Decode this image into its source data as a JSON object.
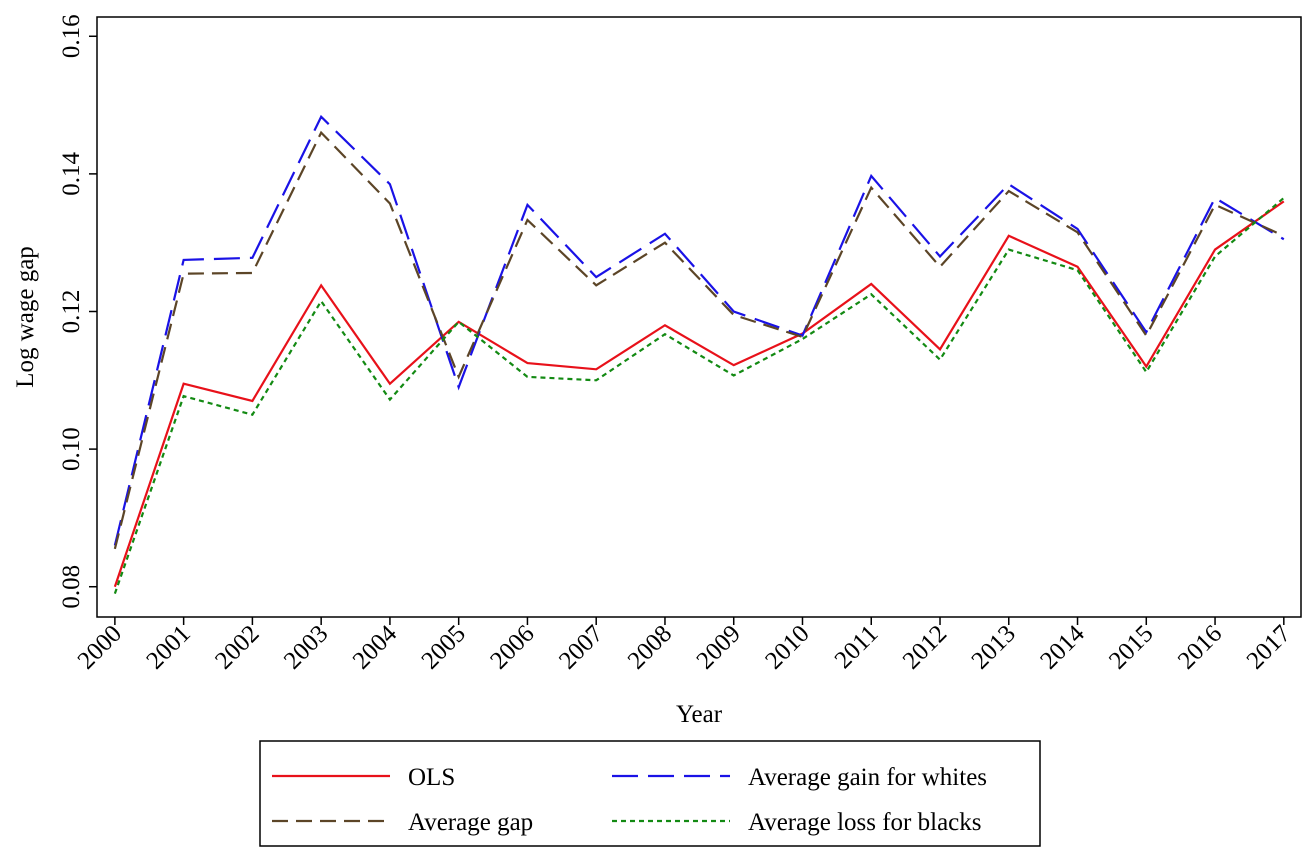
{
  "chart_data": {
    "type": "line",
    "x_label": "Year",
    "y_label": "Log wage gap",
    "x": [
      2000,
      2001,
      2002,
      2003,
      2004,
      2005,
      2006,
      2007,
      2008,
      2009,
      2010,
      2011,
      2012,
      2013,
      2014,
      2015,
      2016,
      2017
    ],
    "xlim": [
      1999.74,
      2017.25
    ],
    "xticks": [
      2000,
      2001,
      2002,
      2003,
      2004,
      2005,
      2006,
      2007,
      2008,
      2009,
      2010,
      2011,
      2012,
      2013,
      2014,
      2015,
      2016,
      2017
    ],
    "ylim": [
      0.0756,
      0.1628
    ],
    "yticks": [
      0.08,
      {
        "value": 0.1,
        "label": "0.10"
      },
      0.12,
      0.14,
      0.16
    ],
    "legend_position": "bottom",
    "series": [
      {
        "name": "OLS",
        "color": "#e8111a",
        "dash": "none",
        "values": [
          0.08,
          0.1095,
          0.107,
          0.1238,
          0.1095,
          0.1185,
          0.1125,
          0.1116,
          0.118,
          0.1122,
          0.1168,
          0.124,
          0.1145,
          0.131,
          0.1265,
          0.112,
          0.129,
          0.136
        ]
      },
      {
        "name": "Average gain for whites",
        "color": "#1a12e6",
        "dash": "26 10",
        "values": [
          0.086,
          0.1275,
          0.1278,
          0.1483,
          0.1385,
          0.109,
          0.1355,
          0.125,
          0.1313,
          0.12,
          0.1165,
          0.1397,
          0.128,
          0.1385,
          0.132,
          0.117,
          0.1365,
          0.1305
        ]
      },
      {
        "name": "Average gap",
        "color": "#5c4527",
        "dash": "16 8",
        "values": [
          0.0855,
          0.1255,
          0.1256,
          0.146,
          0.1357,
          0.1105,
          0.1333,
          0.1238,
          0.13,
          0.1195,
          0.1163,
          0.138,
          0.1265,
          0.1375,
          0.1315,
          0.1165,
          0.1355,
          0.131
        ]
      },
      {
        "name": "Average loss for blacks",
        "color": "#138a13",
        "dash": "5 4",
        "values": [
          0.079,
          0.1077,
          0.105,
          0.1215,
          0.1072,
          0.1185,
          0.1105,
          0.11,
          0.1167,
          0.1107,
          0.116,
          0.1225,
          0.113,
          0.129,
          0.126,
          0.1112,
          0.128,
          0.1365
        ]
      }
    ]
  }
}
